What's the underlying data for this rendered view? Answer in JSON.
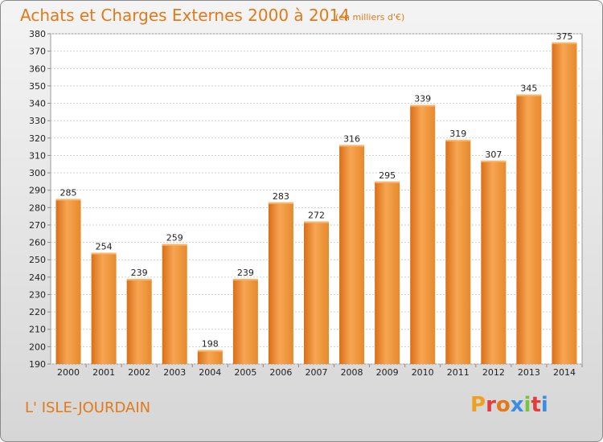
{
  "header": {
    "title": "Achats et Charges Externes 2000 à 2014",
    "subtitle": "(en milliers d'€)"
  },
  "footer": {
    "place": "L' ISLE-JOURDAIN",
    "logo": "Proxiti",
    "logo_colors": [
      "#f0a020",
      "#e23d3d",
      "#e07a1a",
      "#3c8de0",
      "#7cc242",
      "#e23d3d",
      "#3c8de0"
    ]
  },
  "chart_data": {
    "type": "bar",
    "title": "Achats et Charges Externes 2000 à 2014",
    "subtitle": "(en milliers d'€)",
    "categories": [
      "2000",
      "2001",
      "2002",
      "2003",
      "2004",
      "2005",
      "2006",
      "2007",
      "2008",
      "2009",
      "2010",
      "2011",
      "2012",
      "2013",
      "2014"
    ],
    "values": [
      285,
      254,
      239,
      259,
      198,
      239,
      283,
      272,
      316,
      295,
      339,
      319,
      307,
      345,
      375
    ],
    "ylim": [
      190,
      380
    ],
    "yticks": [
      190,
      200,
      210,
      220,
      230,
      240,
      250,
      260,
      270,
      280,
      290,
      300,
      310,
      320,
      330,
      340,
      350,
      360,
      370,
      380
    ],
    "grid": true,
    "bar_color": "#f0922e",
    "bar_color_light": "#f7a553",
    "bar_color_dark": "#d4721a"
  }
}
